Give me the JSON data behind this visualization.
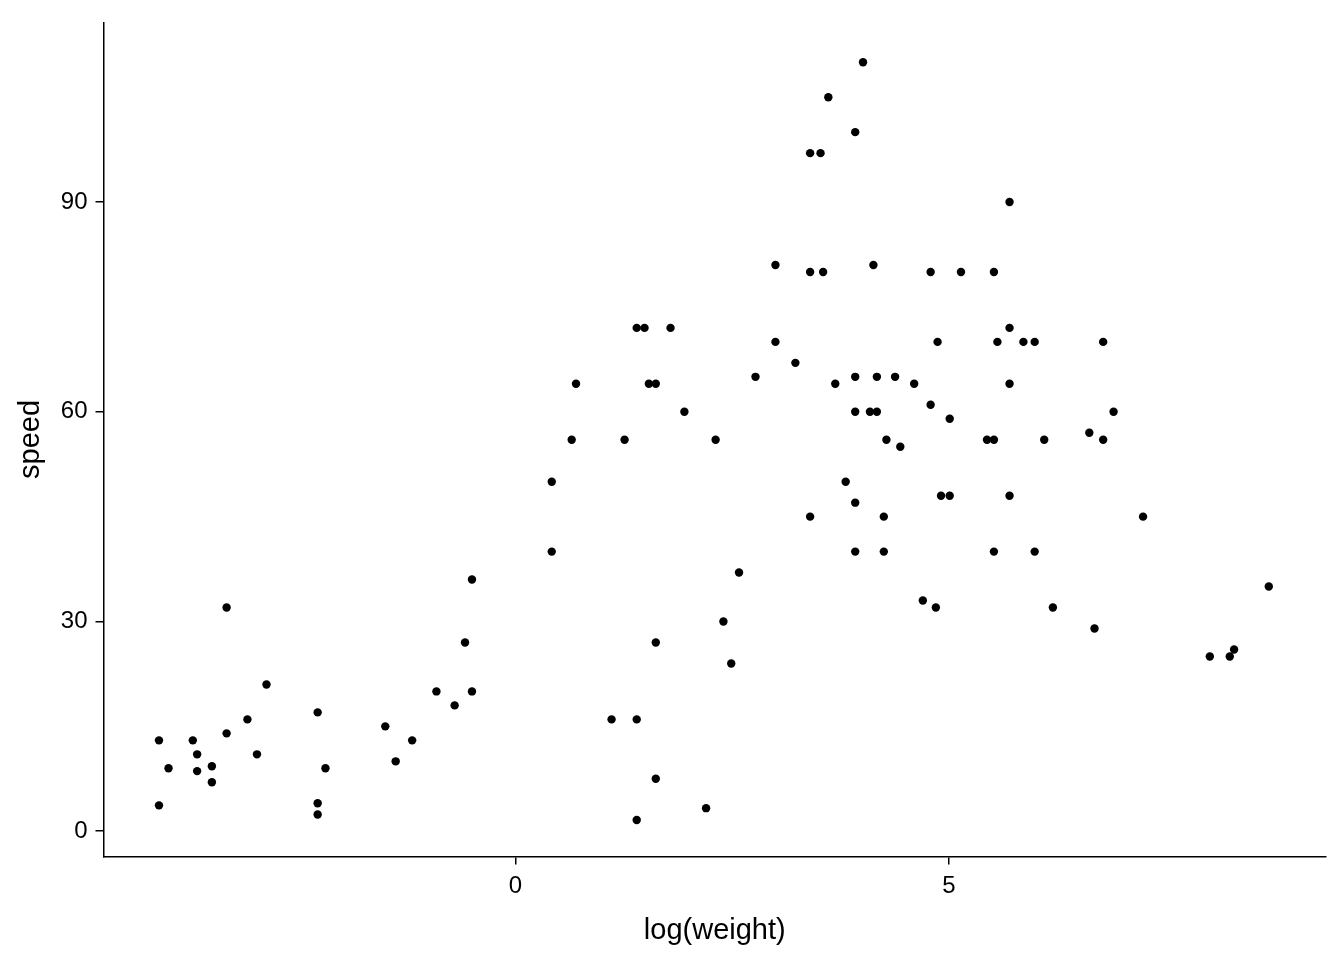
{
  "chart_data": {
    "type": "scatter",
    "xlabel": "log(weight)",
    "ylabel": "speed",
    "xlim": [
      -4.75,
      9.35
    ],
    "ylim": [
      -3.6,
      115.7
    ],
    "xticks": [
      0,
      5
    ],
    "yticks": [
      0,
      30,
      60,
      90
    ],
    "grid": false,
    "legend": false,
    "marker": "circle",
    "series": [
      {
        "color": "#000000",
        "x": [
          -4.11,
          -4.11,
          -4.0,
          -3.72,
          -3.67,
          -3.67,
          -3.5,
          -3.5,
          -3.33,
          -3.33,
          -3.09,
          -2.98,
          -2.87,
          -2.28,
          -2.28,
          -2.28,
          -2.19,
          -1.5,
          -1.38,
          -1.19,
          -0.91,
          -0.7,
          -0.58,
          -0.5,
          -0.5,
          0.42,
          0.42,
          0.65,
          0.7,
          1.11,
          1.26,
          1.4,
          1.4,
          1.4,
          1.49,
          1.54,
          1.62,
          1.62,
          1.62,
          1.79,
          1.95,
          2.2,
          2.31,
          2.4,
          2.49,
          2.58,
          2.77,
          3.0,
          3.0,
          3.23,
          3.4,
          3.4,
          3.4,
          3.52,
          3.55,
          3.61,
          3.69,
          3.81,
          3.92,
          3.92,
          3.92,
          3.92,
          3.92,
          4.01,
          4.09,
          4.13,
          4.17,
          4.17,
          4.25,
          4.25,
          4.28,
          4.38,
          4.44,
          4.6,
          4.7,
          4.79,
          4.79,
          4.85,
          4.87,
          4.91,
          5.01,
          5.01,
          5.14,
          5.44,
          5.52,
          5.52,
          5.52,
          5.56,
          5.7,
          5.7,
          5.7,
          5.7,
          5.86,
          5.99,
          5.99,
          6.1,
          6.2,
          6.62,
          6.68,
          6.78,
          6.78,
          6.9,
          7.24,
          8.01,
          8.24,
          8.29,
          8.69
        ],
        "values": [
          13,
          3.7,
          9,
          13,
          11,
          8.6,
          9.3,
          7,
          32,
          14,
          16,
          11,
          21,
          17,
          4,
          2.4,
          9,
          15,
          10,
          13,
          20,
          18,
          27,
          36,
          20,
          50,
          40,
          56,
          64,
          16,
          56,
          72,
          16,
          1.6,
          72,
          64,
          64,
          27,
          7.5,
          72,
          60,
          3.3,
          56,
          30,
          24,
          37,
          65,
          81,
          70,
          67,
          97,
          80,
          45,
          97,
          80,
          105,
          64,
          50,
          100,
          65,
          60,
          47,
          40,
          110,
          60,
          81,
          65,
          60,
          45,
          40,
          56,
          65,
          55,
          64,
          33,
          61,
          80,
          32,
          70,
          48,
          59,
          48,
          80,
          56,
          80,
          56,
          40,
          70,
          90,
          72,
          64,
          48,
          70,
          40,
          70,
          56,
          32,
          57,
          29,
          70,
          56,
          60,
          45,
          25,
          25,
          26,
          35
        ]
      }
    ]
  }
}
